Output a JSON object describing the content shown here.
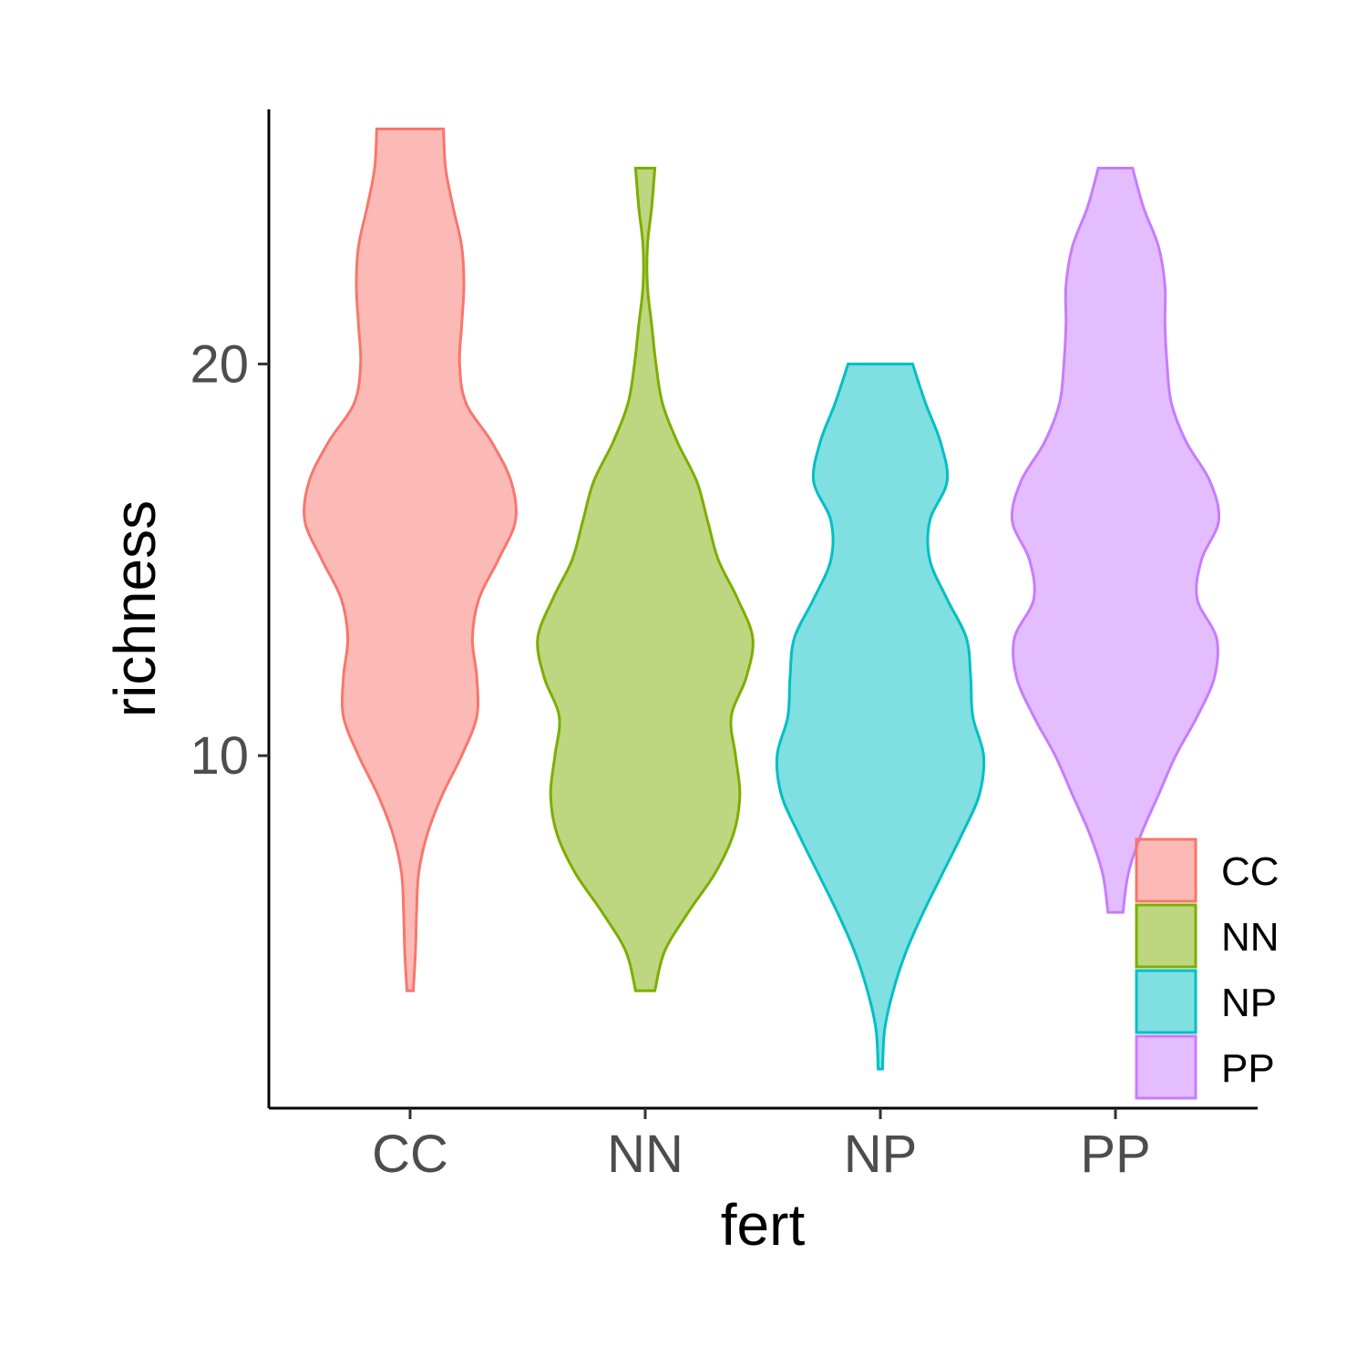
{
  "chart_data": {
    "type": "violin",
    "xlabel": "fert",
    "ylabel": "richness",
    "categories": [
      "CC",
      "NN",
      "NP",
      "PP"
    ],
    "ylim": [
      1,
      26.5
    ],
    "yticks": [
      10,
      20
    ],
    "grid": false,
    "legend_position": "bottom-right",
    "legend": [
      "CC",
      "NN",
      "NP",
      "PP"
    ],
    "colors": [
      "#F8766D",
      "#7CAE00",
      "#00BFC4",
      "#C77CFF"
    ],
    "series": [
      {
        "category": "CC",
        "y_min": 4,
        "y_max": 26,
        "density": [
          {
            "y": 4,
            "w": 0.03
          },
          {
            "y": 5,
            "w": 0.05
          },
          {
            "y": 6,
            "w": 0.06
          },
          {
            "y": 7,
            "w": 0.08
          },
          {
            "y": 8,
            "w": 0.16
          },
          {
            "y": 9,
            "w": 0.3
          },
          {
            "y": 10,
            "w": 0.48
          },
          {
            "y": 11,
            "w": 0.62
          },
          {
            "y": 12,
            "w": 0.62
          },
          {
            "y": 13,
            "w": 0.58
          },
          {
            "y": 14,
            "w": 0.64
          },
          {
            "y": 15,
            "w": 0.82
          },
          {
            "y": 16,
            "w": 0.98
          },
          {
            "y": 17,
            "w": 0.94
          },
          {
            "y": 18,
            "w": 0.76
          },
          {
            "y": 19,
            "w": 0.52
          },
          {
            "y": 20,
            "w": 0.46
          },
          {
            "y": 21,
            "w": 0.48
          },
          {
            "y": 22,
            "w": 0.5
          },
          {
            "y": 23,
            "w": 0.48
          },
          {
            "y": 24,
            "w": 0.4
          },
          {
            "y": 25,
            "w": 0.33
          },
          {
            "y": 26,
            "w": 0.31
          }
        ]
      },
      {
        "category": "NN",
        "y_min": 4,
        "y_max": 25,
        "density": [
          {
            "y": 4,
            "w": 0.09
          },
          {
            "y": 5,
            "w": 0.18
          },
          {
            "y": 6,
            "w": 0.4
          },
          {
            "y": 7,
            "w": 0.65
          },
          {
            "y": 8,
            "w": 0.82
          },
          {
            "y": 9,
            "w": 0.88
          },
          {
            "y": 10,
            "w": 0.84
          },
          {
            "y": 11,
            "w": 0.8
          },
          {
            "y": 12,
            "w": 0.94
          },
          {
            "y": 13,
            "w": 1.0
          },
          {
            "y": 14,
            "w": 0.86
          },
          {
            "y": 15,
            "w": 0.68
          },
          {
            "y": 16,
            "w": 0.58
          },
          {
            "y": 17,
            "w": 0.48
          },
          {
            "y": 18,
            "w": 0.3
          },
          {
            "y": 19,
            "w": 0.16
          },
          {
            "y": 20,
            "w": 0.1
          },
          {
            "y": 21,
            "w": 0.06
          },
          {
            "y": 22,
            "w": 0.02
          },
          {
            "y": 23,
            "w": 0.02
          },
          {
            "y": 24,
            "w": 0.06
          },
          {
            "y": 25,
            "w": 0.09
          }
        ]
      },
      {
        "category": "NP",
        "y_min": 2,
        "y_max": 20,
        "density": [
          {
            "y": 2,
            "w": 0.02
          },
          {
            "y": 3,
            "w": 0.04
          },
          {
            "y": 4,
            "w": 0.12
          },
          {
            "y": 5,
            "w": 0.24
          },
          {
            "y": 6,
            "w": 0.4
          },
          {
            "y": 7,
            "w": 0.58
          },
          {
            "y": 8,
            "w": 0.76
          },
          {
            "y": 9,
            "w": 0.92
          },
          {
            "y": 10,
            "w": 0.96
          },
          {
            "y": 11,
            "w": 0.86
          },
          {
            "y": 12,
            "w": 0.84
          },
          {
            "y": 13,
            "w": 0.8
          },
          {
            "y": 14,
            "w": 0.62
          },
          {
            "y": 15,
            "w": 0.46
          },
          {
            "y": 16,
            "w": 0.46
          },
          {
            "y": 17,
            "w": 0.62
          },
          {
            "y": 18,
            "w": 0.56
          },
          {
            "y": 19,
            "w": 0.42
          },
          {
            "y": 20,
            "w": 0.3
          }
        ]
      },
      {
        "category": "PP",
        "y_min": 6,
        "y_max": 25,
        "density": [
          {
            "y": 6,
            "w": 0.07
          },
          {
            "y": 7,
            "w": 0.12
          },
          {
            "y": 8,
            "w": 0.24
          },
          {
            "y": 9,
            "w": 0.4
          },
          {
            "y": 10,
            "w": 0.56
          },
          {
            "y": 11,
            "w": 0.76
          },
          {
            "y": 12,
            "w": 0.92
          },
          {
            "y": 13,
            "w": 0.94
          },
          {
            "y": 14,
            "w": 0.76
          },
          {
            "y": 15,
            "w": 0.8
          },
          {
            "y": 16,
            "w": 0.96
          },
          {
            "y": 17,
            "w": 0.88
          },
          {
            "y": 18,
            "w": 0.66
          },
          {
            "y": 19,
            "w": 0.52
          },
          {
            "y": 20,
            "w": 0.48
          },
          {
            "y": 21,
            "w": 0.46
          },
          {
            "y": 22,
            "w": 0.46
          },
          {
            "y": 23,
            "w": 0.4
          },
          {
            "y": 24,
            "w": 0.26
          },
          {
            "y": 25,
            "w": 0.16
          }
        ]
      }
    ]
  }
}
